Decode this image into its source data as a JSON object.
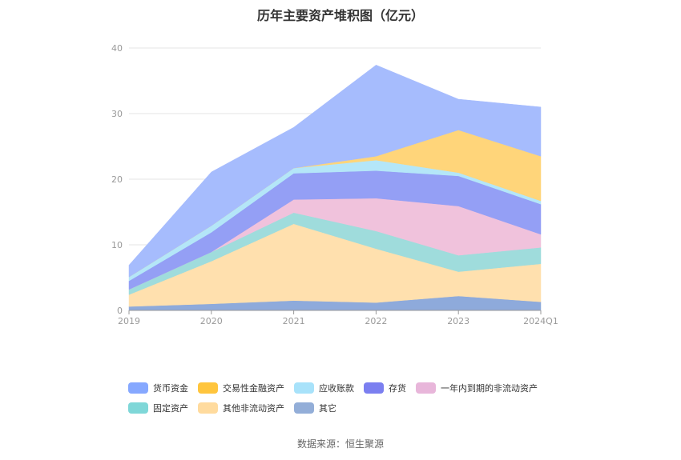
{
  "title": "历年主要资产堆积图（亿元）",
  "source": "数据来源：恒生聚源",
  "chart_data": {
    "type": "area",
    "stacked": true,
    "title": "历年主要资产堆积图（亿元）",
    "categories": [
      "2019",
      "2020",
      "2021",
      "2022",
      "2023",
      "2024Q1"
    ],
    "ylim": [
      0,
      40
    ],
    "yticks": [
      0,
      10,
      20,
      30,
      40
    ],
    "grid": true,
    "legend_position": "bottom",
    "series": [
      {
        "name": "其它",
        "color": "#8EAADB",
        "values": [
          0.6,
          1.0,
          1.5,
          1.2,
          2.2,
          1.3
        ]
      },
      {
        "name": "其他非流动资产",
        "color": "#FFE0AE",
        "values": [
          1.8,
          6.5,
          11.7,
          8.2,
          3.7,
          5.8
        ]
      },
      {
        "name": "固定资产",
        "color": "#9FDCDC",
        "values": [
          0.8,
          1.4,
          1.7,
          2.7,
          2.5,
          2.5
        ]
      },
      {
        "name": "一年内到期的非流动资产",
        "color": "#F0C2DC",
        "values": [
          0,
          0,
          2.0,
          5.0,
          7.5,
          2.0
        ]
      },
      {
        "name": "存货",
        "color": "#949FF5",
        "values": [
          1.3,
          3.0,
          4.0,
          4.2,
          4.6,
          4.6
        ]
      },
      {
        "name": "应收账款",
        "color": "#B4E6F8",
        "values": [
          0.6,
          1.0,
          0.8,
          1.6,
          0.5,
          0.5
        ]
      },
      {
        "name": "交易性金融资产",
        "color": "#FFD57A",
        "values": [
          0,
          0,
          0,
          0.6,
          6.5,
          6.8
        ]
      },
      {
        "name": "货币资金",
        "color": "#A6BCFD",
        "values": [
          1.8,
          8.2,
          6.2,
          13.9,
          4.7,
          7.5
        ]
      }
    ]
  },
  "legend": {
    "row1": [
      {
        "label": "货币资金",
        "color": "#86A8FF"
      },
      {
        "label": "交易性金融资产",
        "color": "#FFC53D"
      },
      {
        "label": "应收账款",
        "color": "#A8E2FA"
      },
      {
        "label": "存货",
        "color": "#7B7FF0"
      },
      {
        "label": "一年内到期的非流动资产",
        "color": "#E8B6DA"
      }
    ],
    "row2": [
      {
        "label": "固定资产",
        "color": "#7FD7D8"
      },
      {
        "label": "其他非流动资产",
        "color": "#FFDB9E"
      },
      {
        "label": "其它",
        "color": "#93AED8"
      }
    ]
  }
}
